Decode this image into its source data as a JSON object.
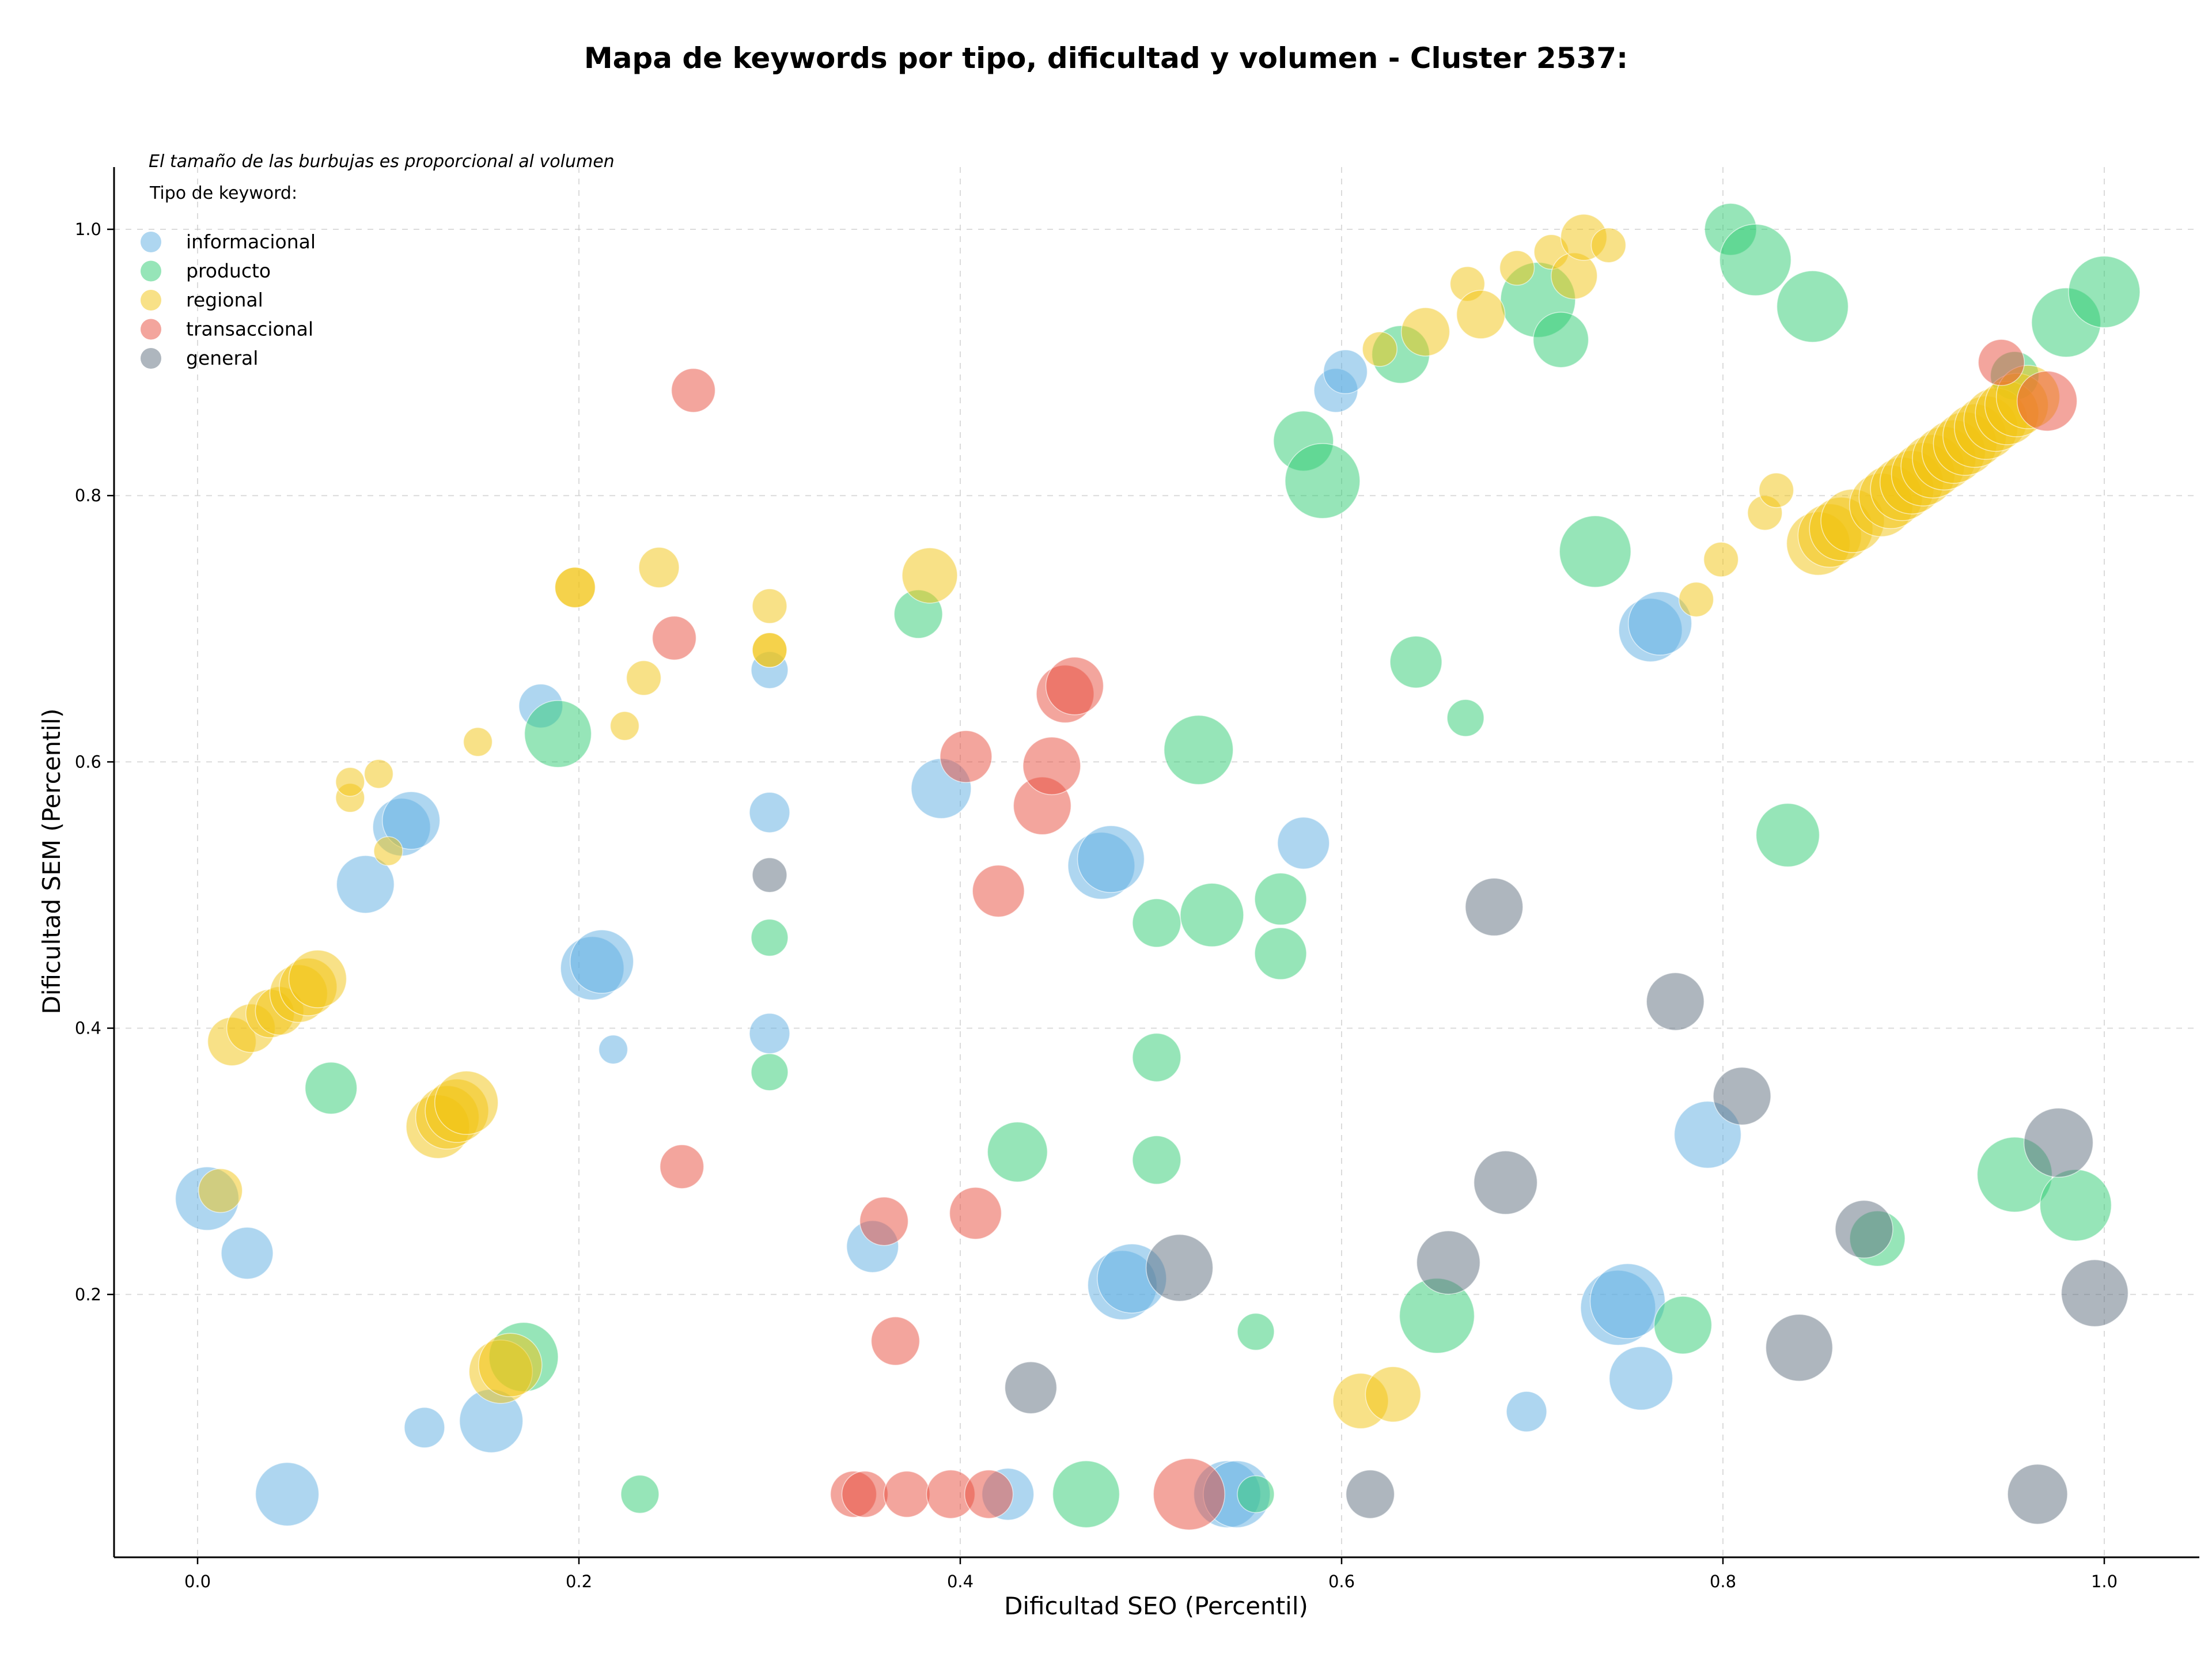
{
  "chart_data": {
    "type": "scatter",
    "title": "Mapa de keywords por tipo, dificultad y volumen - Cluster 2537:",
    "xlabel": "Dificultad SEO (Percentil)",
    "ylabel": "Dificultad SEM (Percentil)",
    "xlim": [
      -0.045,
      1.05
    ],
    "ylim": [
      0.015,
      1.046
    ],
    "xticks": [
      0.0,
      0.2,
      0.4,
      0.6,
      0.8,
      1.0
    ],
    "yticks": [
      0.2,
      0.4,
      0.6,
      0.8,
      1.0
    ],
    "xtick_labels": [
      "0.0",
      "0.2",
      "0.4",
      "0.6",
      "0.8",
      "1.0"
    ],
    "ytick_labels": [
      "0.2",
      "0.4",
      "0.6",
      "0.8",
      "1.0"
    ],
    "grid": true,
    "legend_title": "Tipo de keyword:",
    "legend_position": "top-left",
    "annotation": "El tamaño de las burbujas es proporcional al volumen",
    "series": [
      {
        "name": "informacional",
        "color": "#5DADE2",
        "points": [
          [
            0.005,
            0.272,
            55
          ],
          [
            0.026,
            0.231,
            45
          ],
          [
            0.047,
            0.05,
            55
          ],
          [
            0.088,
            0.508,
            50
          ],
          [
            0.107,
            0.551,
            50
          ],
          [
            0.112,
            0.556,
            50
          ],
          [
            0.119,
            0.1,
            35
          ],
          [
            0.154,
            0.105,
            55
          ],
          [
            0.18,
            0.642,
            38
          ],
          [
            0.207,
            0.445,
            55
          ],
          [
            0.212,
            0.45,
            55
          ],
          [
            0.218,
            0.384,
            25
          ],
          [
            0.3,
            0.669,
            32
          ],
          [
            0.3,
            0.562,
            35
          ],
          [
            0.3,
            0.396,
            35
          ],
          [
            0.354,
            0.236,
            45
          ],
          [
            0.39,
            0.58,
            52
          ],
          [
            0.425,
            0.05,
            45
          ],
          [
            0.474,
            0.522,
            58
          ],
          [
            0.479,
            0.527,
            58
          ],
          [
            0.485,
            0.207,
            60
          ],
          [
            0.49,
            0.212,
            60
          ],
          [
            0.54,
            0.05,
            58
          ],
          [
            0.545,
            0.05,
            58
          ],
          [
            0.58,
            0.539,
            45
          ],
          [
            0.597,
            0.879,
            38
          ],
          [
            0.602,
            0.893,
            38
          ],
          [
            0.745,
            0.19,
            65
          ],
          [
            0.75,
            0.195,
            65
          ],
          [
            0.757,
            0.137,
            55
          ],
          [
            0.762,
            0.699,
            55
          ],
          [
            0.767,
            0.704,
            55
          ],
          [
            0.792,
            0.32,
            58
          ],
          [
            0.697,
            0.112,
            35
          ]
        ]
      },
      {
        "name": "producto",
        "color": "#2ECC71",
        "points": [
          [
            0.07,
            0.355,
            45
          ],
          [
            0.171,
            0.153,
            60
          ],
          [
            0.189,
            0.621,
            58
          ],
          [
            0.232,
            0.05,
            33
          ],
          [
            0.3,
            0.468,
            32
          ],
          [
            0.3,
            0.367,
            32
          ],
          [
            0.378,
            0.711,
            42
          ],
          [
            0.43,
            0.307,
            52
          ],
          [
            0.466,
            0.05,
            58
          ],
          [
            0.503,
            0.479,
            42
          ],
          [
            0.503,
            0.378,
            42
          ],
          [
            0.503,
            0.301,
            42
          ],
          [
            0.525,
            0.609,
            60
          ],
          [
            0.532,
            0.485,
            55
          ],
          [
            0.555,
            0.172,
            32
          ],
          [
            0.555,
            0.05,
            32
          ],
          [
            0.568,
            0.497,
            45
          ],
          [
            0.568,
            0.456,
            45
          ],
          [
            0.58,
            0.841,
            52
          ],
          [
            0.59,
            0.811,
            65
          ],
          [
            0.631,
            0.906,
            50
          ],
          [
            0.639,
            0.675,
            45
          ],
          [
            0.65,
            0.184,
            65
          ],
          [
            0.665,
            0.633,
            32
          ],
          [
            0.703,
            0.947,
            65
          ],
          [
            0.715,
            0.917,
            48
          ],
          [
            0.733,
            0.758,
            62
          ],
          [
            0.779,
            0.177,
            50
          ],
          [
            0.804,
            1.0,
            45
          ],
          [
            0.817,
            0.977,
            62
          ],
          [
            0.834,
            0.545,
            55
          ],
          [
            0.847,
            0.942,
            62
          ],
          [
            0.881,
            0.242,
            48
          ],
          [
            0.953,
            0.89,
            42
          ],
          [
            0.953,
            0.29,
            65
          ],
          [
            0.98,
            0.93,
            60
          ],
          [
            0.985,
            0.267,
            62
          ],
          [
            1.0,
            0.953,
            62
          ]
        ]
      },
      {
        "name": "regional",
        "color": "#F1C40F",
        "points": [
          [
            0.012,
            0.278,
            38
          ],
          [
            0.018,
            0.39,
            42
          ],
          [
            0.028,
            0.4,
            42
          ],
          [
            0.038,
            0.411,
            42
          ],
          [
            0.043,
            0.413,
            42
          ],
          [
            0.053,
            0.426,
            50
          ],
          [
            0.058,
            0.431,
            50
          ],
          [
            0.063,
            0.437,
            50
          ],
          [
            0.08,
            0.573,
            25
          ],
          [
            0.08,
            0.585,
            25
          ],
          [
            0.095,
            0.591,
            25
          ],
          [
            0.1,
            0.533,
            25
          ],
          [
            0.126,
            0.326,
            55
          ],
          [
            0.131,
            0.333,
            55
          ],
          [
            0.136,
            0.338,
            55
          ],
          [
            0.141,
            0.344,
            55
          ],
          [
            0.147,
            0.615,
            25
          ],
          [
            0.159,
            0.142,
            55
          ],
          [
            0.164,
            0.147,
            55
          ],
          [
            0.198,
            0.731,
            35
          ],
          [
            0.198,
            0.731,
            35
          ],
          [
            0.224,
            0.627,
            25
          ],
          [
            0.234,
            0.663,
            30
          ],
          [
            0.242,
            0.746,
            35
          ],
          [
            0.3,
            0.717,
            30
          ],
          [
            0.3,
            0.684,
            30
          ],
          [
            0.3,
            0.684,
            30
          ],
          [
            0.384,
            0.74,
            48
          ],
          [
            0.61,
            0.12,
            48
          ],
          [
            0.62,
            0.91,
            30
          ],
          [
            0.627,
            0.125,
            48
          ],
          [
            0.644,
            0.923,
            42
          ],
          [
            0.666,
            0.959,
            30
          ],
          [
            0.673,
            0.936,
            42
          ],
          [
            0.692,
            0.971,
            30
          ],
          [
            0.71,
            0.983,
            30
          ],
          [
            0.722,
            0.965,
            40
          ],
          [
            0.727,
            0.994,
            40
          ],
          [
            0.74,
            0.988,
            30
          ],
          [
            0.786,
            0.722,
            30
          ],
          [
            0.799,
            0.752,
            30
          ],
          [
            0.822,
            0.787,
            30
          ],
          [
            0.828,
            0.804,
            30
          ],
          [
            0.85,
            0.764,
            55
          ],
          [
            0.856,
            0.77,
            55
          ],
          [
            0.862,
            0.775,
            55
          ],
          [
            0.868,
            0.781,
            55
          ],
          [
            0.883,
            0.793,
            55
          ],
          [
            0.888,
            0.799,
            55
          ],
          [
            0.894,
            0.805,
            55
          ],
          [
            0.899,
            0.81,
            55
          ],
          [
            0.905,
            0.816,
            55
          ],
          [
            0.91,
            0.822,
            55
          ],
          [
            0.916,
            0.828,
            55
          ],
          [
            0.921,
            0.833,
            55
          ],
          [
            0.927,
            0.839,
            55
          ],
          [
            0.932,
            0.845,
            55
          ],
          [
            0.938,
            0.851,
            55
          ],
          [
            0.943,
            0.857,
            55
          ],
          [
            0.949,
            0.862,
            55
          ],
          [
            0.954,
            0.868,
            55
          ],
          [
            0.96,
            0.874,
            55
          ]
        ]
      },
      {
        "name": "transaccional",
        "color": "#E74C3C",
        "points": [
          [
            0.26,
            0.879,
            38
          ],
          [
            0.25,
            0.693,
            38
          ],
          [
            0.254,
            0.296,
            38
          ],
          [
            0.344,
            0.05,
            40
          ],
          [
            0.35,
            0.05,
            40
          ],
          [
            0.36,
            0.255,
            42
          ],
          [
            0.366,
            0.165,
            42
          ],
          [
            0.372,
            0.05,
            40
          ],
          [
            0.395,
            0.05,
            42
          ],
          [
            0.403,
            0.604,
            45
          ],
          [
            0.408,
            0.261,
            45
          ],
          [
            0.415,
            0.05,
            42
          ],
          [
            0.42,
            0.503,
            45
          ],
          [
            0.443,
            0.567,
            50
          ],
          [
            0.448,
            0.597,
            50
          ],
          [
            0.455,
            0.651,
            50
          ],
          [
            0.46,
            0.657,
            50
          ],
          [
            0.52,
            0.05,
            62
          ],
          [
            0.946,
            0.9,
            40
          ],
          [
            0.97,
            0.871,
            52
          ]
        ]
      },
      {
        "name": "general",
        "color": "#5D6D7E",
        "points": [
          [
            0.3,
            0.515,
            30
          ],
          [
            0.437,
            0.13,
            45
          ],
          [
            0.515,
            0.22,
            58
          ],
          [
            0.615,
            0.05,
            42
          ],
          [
            0.656,
            0.224,
            55
          ],
          [
            0.68,
            0.491,
            50
          ],
          [
            0.686,
            0.284,
            55
          ],
          [
            0.775,
            0.42,
            50
          ],
          [
            0.81,
            0.349,
            50
          ],
          [
            0.84,
            0.16,
            58
          ],
          [
            0.874,
            0.249,
            50
          ],
          [
            0.965,
            0.05,
            52
          ],
          [
            0.976,
            0.314,
            60
          ],
          [
            0.995,
            0.201,
            58
          ]
        ]
      }
    ]
  }
}
